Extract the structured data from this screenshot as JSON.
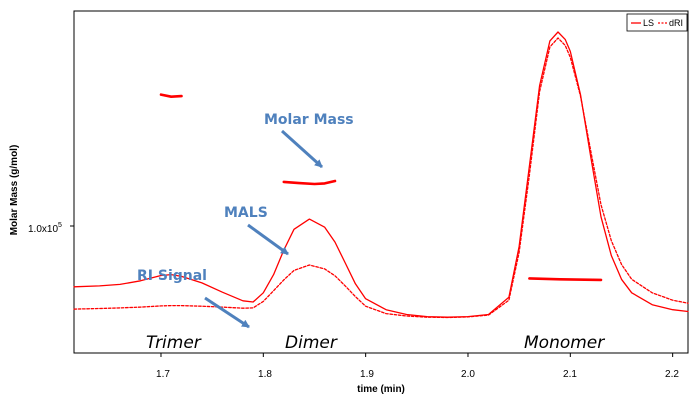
{
  "chart_data": {
    "type": "line",
    "xlabel": "time (min)",
    "ylabel": "Molar Mass (g/mol)",
    "xlim": [
      1.615,
      2.215
    ],
    "x_ticks": [
      "1.7",
      "1.8",
      "1.9",
      "2.0",
      "2.1",
      "2.2"
    ],
    "x_tick_values": [
      1.7,
      1.8,
      1.9,
      2.0,
      2.1,
      2.2
    ],
    "y_tick": {
      "label": "1.0x10",
      "exponent": "5",
      "value": 100000
    },
    "y_scale": "log",
    "grid": false,
    "legend": {
      "position": "top-right",
      "entries": [
        {
          "name": "LS",
          "style": "solid",
          "color": "#ff0000"
        },
        {
          "name": "dRI",
          "style": "dashed",
          "color": "#ff0000"
        }
      ]
    },
    "series": [
      {
        "name": "LS",
        "style": "solid",
        "color": "#ff0000",
        "x": [
          1.615,
          1.64,
          1.66,
          1.68,
          1.7,
          1.71,
          1.72,
          1.74,
          1.76,
          1.78,
          1.79,
          1.8,
          1.81,
          1.82,
          1.83,
          1.845,
          1.86,
          1.87,
          1.88,
          1.89,
          1.9,
          1.92,
          1.94,
          1.96,
          1.98,
          2.0,
          2.02,
          2.04,
          2.05,
          2.06,
          2.07,
          2.08,
          2.088,
          2.095,
          2.1,
          2.11,
          2.12,
          2.13,
          2.14,
          2.15,
          2.16,
          2.18,
          2.2,
          2.215
        ],
        "y": [
          0.145,
          0.148,
          0.153,
          0.165,
          0.183,
          0.186,
          0.18,
          0.158,
          0.127,
          0.098,
          0.094,
          0.125,
          0.186,
          0.268,
          0.338,
          0.372,
          0.345,
          0.295,
          0.225,
          0.155,
          0.105,
          0.068,
          0.052,
          0.045,
          0.043,
          0.045,
          0.052,
          0.11,
          0.28,
          0.55,
          0.82,
          0.97,
          1.0,
          0.975,
          0.935,
          0.79,
          0.58,
          0.38,
          0.25,
          0.17,
          0.125,
          0.085,
          0.068,
          0.062
        ]
      },
      {
        "name": "dRI",
        "style": "dashed",
        "color": "#ff0000",
        "x": [
          1.615,
          1.64,
          1.66,
          1.68,
          1.7,
          1.71,
          1.72,
          1.74,
          1.76,
          1.78,
          1.79,
          1.8,
          1.81,
          1.82,
          1.83,
          1.845,
          1.86,
          1.87,
          1.88,
          1.89,
          1.9,
          1.92,
          1.94,
          1.96,
          1.98,
          2.0,
          2.02,
          2.04,
          2.05,
          2.06,
          2.07,
          2.08,
          2.088,
          2.095,
          2.1,
          2.11,
          2.12,
          2.13,
          2.14,
          2.15,
          2.16,
          2.18,
          2.2,
          2.215
        ],
        "y": [
          0.07,
          0.072,
          0.074,
          0.077,
          0.081,
          0.082,
          0.082,
          0.08,
          0.077,
          0.073,
          0.074,
          0.096,
          0.132,
          0.168,
          0.2,
          0.218,
          0.205,
          0.182,
          0.148,
          0.112,
          0.08,
          0.055,
          0.047,
          0.043,
          0.042,
          0.044,
          0.05,
          0.1,
          0.26,
          0.52,
          0.8,
          0.95,
          0.98,
          0.955,
          0.915,
          0.785,
          0.6,
          0.42,
          0.3,
          0.22,
          0.17,
          0.125,
          0.1,
          0.09
        ]
      },
      {
        "name": "",
        "style": "solid-thick",
        "color": "#ff0000",
        "x": [
          1.7,
          1.71,
          1.72
        ],
        "y": [
          0.79,
          0.783,
          0.785
        ]
      },
      {
        "name": "",
        "style": "solid-thick",
        "color": "#ff0000",
        "x": [
          1.82,
          1.835,
          1.85,
          1.86,
          1.87
        ],
        "y": [
          0.497,
          0.493,
          0.49,
          0.492,
          0.5
        ]
      },
      {
        "name": "",
        "style": "solid-thick",
        "color": "#ff0000",
        "x": [
          2.06,
          2.09,
          2.13
        ],
        "y": [
          0.173,
          0.17,
          0.168
        ]
      }
    ],
    "annotations": {
      "molar_mass": "Molar Mass",
      "mals": "MALS",
      "ri_signal": "RI Signal",
      "trimer": "Trimer",
      "dimer": "Dimer",
      "monomer": "Monomer"
    }
  }
}
